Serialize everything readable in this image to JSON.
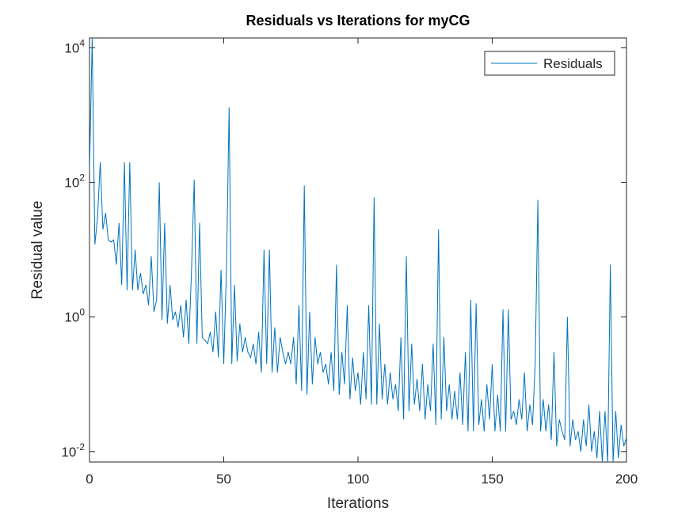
{
  "chart_data": {
    "type": "line",
    "title": "Residuals vs Iterations for myCG",
    "x_label": "Iterations",
    "y_label": "Residual value",
    "log_y": true,
    "xlim": [
      0,
      200
    ],
    "ylim": [
      0.007,
      14000
    ],
    "xticks": [
      0,
      50,
      100,
      150,
      200
    ],
    "yticks": [
      {
        "value": 0.01,
        "label": "10",
        "power": "-2"
      },
      {
        "value": 1,
        "label": "10",
        "power": "0"
      },
      {
        "value": 100,
        "label": "10",
        "power": "2"
      },
      {
        "value": 10000,
        "label": "10",
        "power": "4"
      }
    ],
    "legend": "top-right",
    "x": [
      0,
      1,
      2,
      3,
      4,
      5,
      6,
      7,
      8,
      9,
      10,
      11,
      12,
      13,
      14,
      15,
      16,
      17,
      18,
      19,
      20,
      21,
      22,
      23,
      24,
      25,
      26,
      27,
      28,
      29,
      30,
      31,
      32,
      33,
      34,
      35,
      36,
      37,
      38,
      39,
      40,
      41,
      42,
      43,
      44,
      45,
      46,
      47,
      48,
      49,
      50,
      51,
      52,
      53,
      54,
      55,
      56,
      57,
      58,
      59,
      60,
      61,
      62,
      63,
      64,
      65,
      66,
      67,
      68,
      69,
      70,
      71,
      72,
      73,
      74,
      75,
      76,
      77,
      78,
      79,
      80,
      81,
      82,
      83,
      84,
      85,
      86,
      87,
      88,
      89,
      90,
      91,
      92,
      93,
      94,
      95,
      96,
      97,
      98,
      99,
      100,
      101,
      102,
      103,
      104,
      105,
      106,
      107,
      108,
      109,
      110,
      111,
      112,
      113,
      114,
      115,
      116,
      117,
      118,
      119,
      120,
      121,
      122,
      123,
      124,
      125,
      126,
      127,
      128,
      129,
      130,
      131,
      132,
      133,
      134,
      135,
      136,
      137,
      138,
      139,
      140,
      141,
      142,
      143,
      144,
      145,
      146,
      147,
      148,
      149,
      150,
      151,
      152,
      153,
      154,
      155,
      156,
      157,
      158,
      159,
      160,
      161,
      162,
      163,
      164,
      165,
      166,
      167,
      168,
      169,
      170,
      171,
      172,
      173,
      174,
      175,
      176,
      177,
      178,
      179,
      180,
      181,
      182,
      183,
      184,
      185,
      186,
      187,
      188,
      189,
      190,
      191,
      192,
      193,
      194,
      195,
      196,
      197,
      198,
      199,
      200
    ],
    "series": [
      {
        "name": "Residuals",
        "color": "#0072bd",
        "values": [
          150,
          14000,
          12,
          30,
          200,
          20,
          35,
          14,
          13,
          14,
          6,
          25,
          3,
          200,
          2.5,
          200,
          2.5,
          10,
          2.5,
          4.5,
          2.2,
          3,
          1.5,
          8,
          1.2,
          1.8,
          100,
          0.9,
          25,
          0.8,
          3,
          0.9,
          1.2,
          0.7,
          1.5,
          0.5,
          1.8,
          0.4,
          5,
          110,
          0.4,
          25,
          0.5,
          0.45,
          0.4,
          0.6,
          0.3,
          1.2,
          0.25,
          5,
          0.2,
          5,
          1300,
          0.2,
          3,
          0.22,
          0.8,
          0.3,
          0.5,
          0.3,
          0.25,
          0.4,
          0.2,
          0.6,
          0.15,
          10,
          0.2,
          10,
          0.15,
          0.7,
          0.15,
          0.5,
          0.3,
          0.2,
          0.3,
          0.2,
          0.5,
          0.1,
          1.5,
          0.08,
          90,
          0.07,
          1.2,
          0.1,
          0.5,
          0.2,
          0.3,
          0.15,
          0.2,
          0.1,
          0.3,
          0.08,
          6,
          0.07,
          0.3,
          0.1,
          1.5,
          0.06,
          0.25,
          0.08,
          0.15,
          0.05,
          0.3,
          0.06,
          1.5,
          0.05,
          60,
          0.05,
          0.8,
          0.06,
          0.2,
          0.05,
          0.15,
          0.06,
          0.1,
          0.04,
          0.5,
          0.03,
          8,
          0.04,
          0.4,
          0.05,
          0.12,
          0.04,
          0.2,
          0.03,
          0.1,
          0.04,
          0.4,
          0.025,
          20,
          0.03,
          0.5,
          0.04,
          0.1,
          0.03,
          0.08,
          0.03,
          0.15,
          0.025,
          0.3,
          0.02,
          1.8,
          0.02,
          1.6,
          0.025,
          0.06,
          0.02,
          0.1,
          0.03,
          0.2,
          0.02,
          0.07,
          0.02,
          1.3,
          0.02,
          1.3,
          0.03,
          0.04,
          0.025,
          0.06,
          0.03,
          0.15,
          0.02,
          0.05,
          0.025,
          0.2,
          55,
          0.02,
          0.06,
          0.02,
          0.05,
          0.015,
          0.3,
          0.012,
          0.03,
          0.02,
          0.015,
          1.0,
          0.012,
          0.03,
          0.015,
          0.02,
          0.01,
          0.03,
          0.012,
          0.05,
          0.01,
          0.02,
          0.008,
          0.04,
          0.007,
          0.04,
          0.007,
          6,
          0.007,
          0.04,
          0.008,
          0.025,
          0.012,
          0.016
        ]
      }
    ]
  }
}
